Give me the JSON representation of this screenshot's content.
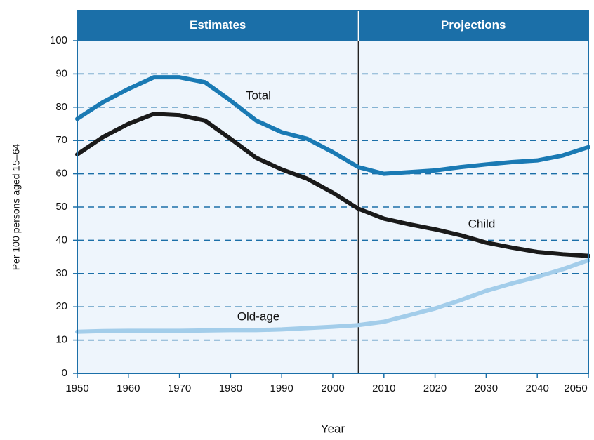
{
  "chart_data": {
    "type": "line",
    "x_label": "Year",
    "y_label": "Per 100 persons aged 15–64",
    "sections": [
      "Estimates",
      "Projections"
    ],
    "divider": 2005,
    "x": [
      1950,
      1955,
      1960,
      1965,
      1970,
      1975,
      1980,
      1985,
      1990,
      1995,
      2000,
      2005,
      2010,
      2015,
      2020,
      2025,
      2030,
      2035,
      2040,
      2045,
      2050
    ],
    "series": [
      {
        "name": "Total",
        "color": "#1a7ab4",
        "values": [
          76.5,
          81.5,
          85.5,
          89,
          89,
          87.5,
          82,
          76,
          72.5,
          70.5,
          66.5,
          62,
          60,
          60.5,
          61,
          62,
          62.8,
          63.5,
          64,
          65.5,
          68
        ]
      },
      {
        "name": "Child",
        "color": "#1a1a1a",
        "values": [
          65.8,
          71,
          75,
          78,
          77.6,
          76,
          70.5,
          64.8,
          61.3,
          58.5,
          54.3,
          49.5,
          46.5,
          44.8,
          43.3,
          41.5,
          39.3,
          37.8,
          36.5,
          35.8,
          35.3
        ]
      },
      {
        "name": "Old-age",
        "color": "#a3cdea",
        "values": [
          12.5,
          12.7,
          12.8,
          12.8,
          12.8,
          12.9,
          13,
          13,
          13.2,
          13.6,
          14,
          14.5,
          15.5,
          17.5,
          19.5,
          22,
          24.8,
          27,
          29,
          31.3,
          34
        ]
      }
    ],
    "xlim": [
      1950,
      2050
    ],
    "xticks": [
      1950,
      1960,
      1970,
      1980,
      1990,
      2000,
      2010,
      2020,
      2030,
      2040,
      2050
    ],
    "ylim": [
      0,
      100
    ],
    "yticks": [
      0,
      10,
      20,
      30,
      40,
      50,
      60,
      70,
      80,
      90,
      100
    ],
    "grid": true
  }
}
